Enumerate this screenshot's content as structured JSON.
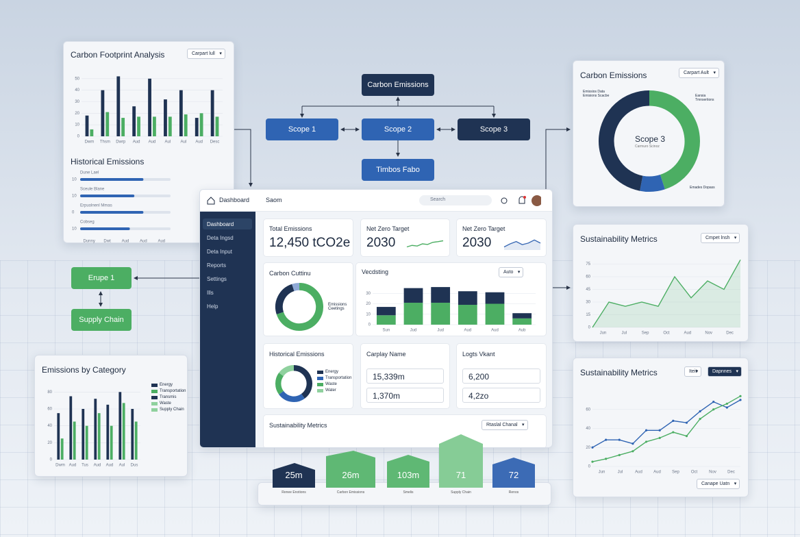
{
  "flow": {
    "top": "Carbon Emissions",
    "scope1": "Scope 1",
    "scope2": "Scope 2",
    "scope3": "Scope 3",
    "bottom": "Timbos Fabo",
    "left_top": "Erupe 1",
    "left_bottom": "Supply Chain"
  },
  "footprint": {
    "title": "Carbon Footprint Analysis",
    "dropdown": "Carpart lull",
    "chart": {
      "type": "bar",
      "categories": [
        "Dwm",
        "Thsm",
        "Dwrp",
        "Aud",
        "Aud",
        "Aul",
        "Aul",
        "Aud",
        "Desc"
      ],
      "series": [
        {
          "color": "#1f3353",
          "values": [
            18,
            40,
            52,
            26,
            50,
            32,
            40,
            16,
            40
          ]
        },
        {
          "color": "#4cae63",
          "values": [
            6,
            21,
            16,
            17,
            17,
            17,
            19,
            20,
            17
          ]
        }
      ],
      "ylim": [
        0,
        60
      ],
      "yticks": [
        0,
        10,
        20,
        30,
        40,
        50
      ]
    }
  },
  "historical": {
    "title": "Historical Emissions",
    "chart": {
      "type": "hbar",
      "categories": [
        "Dune Lael",
        "Sceule Blane",
        "Erpuolnenl Mmas",
        "Cobseg"
      ],
      "row_ticks": [
        "10",
        "10",
        "0",
        "10"
      ],
      "values": [
        70,
        60,
        70,
        55
      ],
      "xlim": [
        0,
        100
      ],
      "color": "#2f64b3",
      "x_labels": [
        "Dunny",
        "Dwt",
        "Aud",
        "Aud",
        "Aud"
      ]
    }
  },
  "dashboard": {
    "brand": "Dashboard",
    "section": "Saom",
    "search": "Search",
    "nav": [
      "Dashboard",
      "Deta Ingsd",
      "Deta Input",
      "Reports",
      "Settings",
      "Ills",
      "Help"
    ],
    "kpis": [
      {
        "label": "Total Emissions",
        "value": "12,450 tCO2e"
      },
      {
        "label": "Net Zero Target",
        "value": "2030",
        "spark": {
          "type": "line",
          "values": [
            2,
            3,
            2.6,
            4,
            3.6,
            5,
            5.4,
            6
          ],
          "ylim": [
            0,
            8
          ],
          "color": "#4cae63"
        }
      },
      {
        "label": "Net Zero Target",
        "value": "2030",
        "spark": {
          "type": "area",
          "values": [
            2,
            4,
            5.5,
            3.5,
            4.5,
            6.5,
            4.5
          ],
          "ylim": [
            0,
            8
          ],
          "color": "#3c6bb5"
        }
      }
    ],
    "cutting": {
      "title": "Carbon Cuttinu",
      "legend": "Emissions Ceetings",
      "chart": {
        "type": "donut",
        "values": [
          70,
          25,
          5
        ],
        "colors": [
          "#4cae63",
          "#1f3353",
          "#8fa9d6"
        ]
      }
    },
    "forecast": {
      "title": "Vecdsting",
      "dropdown": "Auto",
      "chart": {
        "type": "bar",
        "stacked": true,
        "categories": [
          "Sun",
          "Jud",
          "Jud",
          "Aud",
          "Aud",
          "Aub"
        ],
        "series": [
          {
            "color": "#4cae63",
            "values": [
              9,
              21,
              21,
              19,
              20,
              6
            ]
          },
          {
            "color": "#1f3353",
            "values": [
              8,
              14,
              15,
              13,
              11,
              5
            ]
          }
        ],
        "ylim": [
          0,
          40
        ],
        "yticks": [
          0,
          10,
          20,
          30
        ]
      }
    },
    "history": {
      "title": "Historical Emissions",
      "legend": [
        "Energy",
        "Transportation",
        "Waste",
        "Water"
      ],
      "chart": {
        "type": "donut",
        "values": [
          40,
          25,
          20,
          15
        ],
        "colors": [
          "#1f3353",
          "#2f64b3",
          "#4cae63",
          "#8fd19e"
        ]
      }
    },
    "company": {
      "title": "Carplay Name",
      "fields": [
        "15,339m",
        "1,370m"
      ]
    },
    "logistics": {
      "title": "Logts Vkant",
      "fields": [
        "6,200",
        "4,2zo"
      ]
    },
    "metrics": {
      "title": "Sustainability Metrics",
      "dropdown": "Rtaslal Chanal"
    }
  },
  "tiles": [
    {
      "value": "25m",
      "label": "Renee Enotions"
    },
    {
      "value": "26m",
      "label": "Carbon Emissions"
    },
    {
      "value": "103m",
      "label": "Smelis"
    },
    {
      "value": "71",
      "label": "Supply Chain"
    },
    {
      "value": "72",
      "label": "Renos"
    }
  ],
  "emissions_donut": {
    "title": "Carbon Emissions",
    "dropdown": "Carpart Ault",
    "center": "Scope 3",
    "center_sub": "Carmuro Scinoz",
    "notes": [
      "Emissios Data Emisions Scacbe",
      "Eansia Tmnsertions",
      "Emades Dopass"
    ],
    "chart": {
      "type": "donut",
      "values": [
        45,
        8,
        47
      ],
      "colors": [
        "#4cae63",
        "#2f64b3",
        "#1f3353"
      ]
    }
  },
  "metrics_a": {
    "title": "Sustainability Metrics",
    "dropdown": "Cmpet lnsh",
    "chart": {
      "type": "area",
      "values": [
        0,
        30,
        25,
        30,
        25,
        60,
        35,
        55,
        45,
        80
      ],
      "ylim": [
        0,
        90
      ],
      "yticks": [
        0,
        15,
        30,
        45,
        60,
        75
      ],
      "color": "#4cae63",
      "x_labels": [
        "Jun",
        "Jul",
        "Sep",
        "Oct",
        "Aud",
        "Nov",
        "Dec"
      ]
    }
  },
  "metrics_b": {
    "title": "Sustainability Metrics",
    "buttons": [
      "Iteit",
      "Dapnnes"
    ],
    "dropdown": "Canape Uatn",
    "chart": {
      "type": "line",
      "markers": true,
      "series": [
        {
          "color": "#2f64b3",
          "values": [
            20,
            28,
            28,
            24,
            38,
            38,
            48,
            46,
            58,
            68,
            62,
            70
          ]
        },
        {
          "color": "#4cae63",
          "values": [
            5,
            8,
            12,
            16,
            26,
            30,
            36,
            32,
            50,
            60,
            66,
            74
          ]
        }
      ],
      "ylim": [
        0,
        80
      ],
      "yticks": [
        0,
        20,
        40,
        60
      ],
      "x_labels": [
        "Jun",
        "Jul",
        "Aud",
        "Aud",
        "Sep",
        "Oct",
        "Nov",
        "Dec"
      ]
    }
  },
  "category": {
    "title": "Emissions by Category",
    "legend": [
      "Energy",
      "Transportation",
      "Transmis",
      "Waste",
      "Supply Chain"
    ],
    "chart": {
      "type": "bar",
      "categories": [
        "Dwm",
        "Aud",
        "Tus",
        "Aud",
        "Aud",
        "Aul",
        "Dus"
      ],
      "series": [
        {
          "color": "#1f3353",
          "values": [
            55,
            75,
            60,
            72,
            65,
            80,
            60
          ]
        },
        {
          "color": "#4cae63",
          "values": [
            25,
            45,
            40,
            55,
            40,
            67,
            45
          ]
        }
      ],
      "ylim": [
        0,
        90
      ],
      "yticks": [
        0,
        20,
        40,
        60,
        80
      ]
    }
  }
}
